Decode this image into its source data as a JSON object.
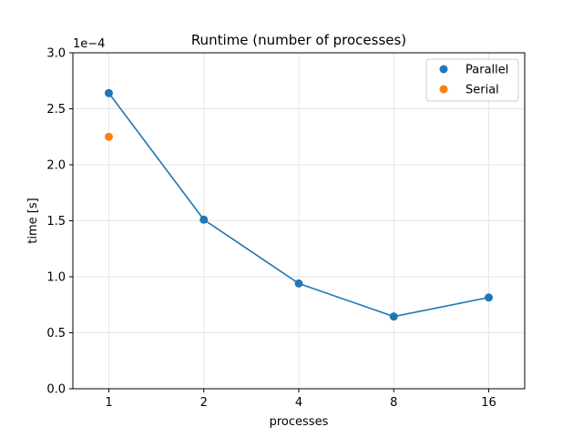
{
  "chart_data": {
    "type": "scatter",
    "title": "Runtime (number of processes)",
    "xlabel": "processes",
    "ylabel": "time [s]",
    "y_offset_text": "1e−4",
    "categories": [
      "1",
      "2",
      "4",
      "8",
      "16"
    ],
    "ylim": [
      0,
      3.0
    ],
    "y_scale_factor": 0.0001,
    "yticks": [
      "0.0",
      "0.5",
      "1.0",
      "1.5",
      "2.0",
      "2.5",
      "3.0"
    ],
    "grid": true,
    "legend_position": "top-right",
    "series": [
      {
        "name": "Parallel",
        "color": "#1f77b4",
        "x": [
          "1",
          "2",
          "4",
          "8",
          "16"
        ],
        "values": [
          2.64,
          1.51,
          0.94,
          0.645,
          0.815
        ],
        "connected": true
      },
      {
        "name": "Serial",
        "color": "#ff7f0e",
        "x": [
          "1"
        ],
        "values": [
          2.25
        ],
        "connected": false
      }
    ]
  }
}
